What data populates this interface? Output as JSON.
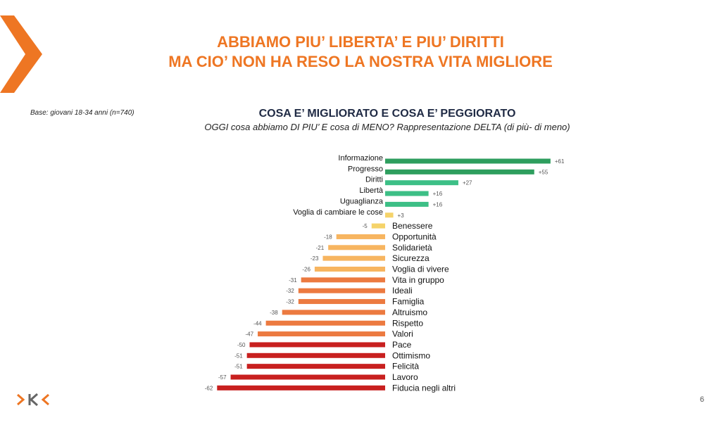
{
  "header": {
    "title_line1": "ABBIAMO PIU’ LIBERTA’ E PIU’ DIRITTI",
    "title_line2": "MA CIO’ NON HA RESO LA NOSTRA VITA MIGLIORE"
  },
  "base_note": "Base: giovani 18-34 anni (n=740)",
  "chart_title": "COSA E’ MIGLIORATO E COSA E’ PEGGIORATO",
  "chart_subtitle": "OGGI cosa abbiamo DI PIU’ E cosa di MENO? Rappresentazione DELTA (di più- di meno)",
  "page_number": "6",
  "colors": {
    "brand_orange": "#ee7623",
    "dark_green": "#2e9e5e",
    "light_green": "#3dbf86",
    "yellow": "#f5d36a",
    "light_orange": "#f7b560",
    "orange": "#ec7a40",
    "red": "#c8201f"
  },
  "chart_data": {
    "type": "bar",
    "orientation": "horizontal",
    "categories": [
      "Informazione",
      "Progresso",
      "Diritti",
      "Libertà",
      "Uguaglianza",
      "Voglia di cambiare le cose",
      "Benessere",
      "Opportunità",
      "Solidarietà",
      "Sicurezza",
      "Voglia di vivere",
      "Vita in gruppo",
      "Ideali",
      "Famiglia",
      "Altruismo",
      "Rispetto",
      "Valori",
      "Pace",
      "Ottimismo",
      "Felicità",
      "Lavoro",
      "Fiducia negli altri"
    ],
    "values": [
      61,
      55,
      27,
      16,
      16,
      3,
      -5,
      -18,
      -21,
      -23,
      -26,
      -31,
      -32,
      -32,
      -38,
      -44,
      -47,
      -50,
      -51,
      -51,
      -57,
      -62
    ],
    "value_labels": [
      "+61",
      "+55",
      "+27",
      "+16",
      "+16",
      "+3",
      "-5",
      "-18",
      "-21",
      "-23",
      "-26",
      "-31",
      "-32",
      "-32",
      "-38",
      "-44",
      "-47",
      "-50",
      "-51",
      "-51",
      "-57",
      "-62"
    ],
    "bar_colors": [
      "#2e9e5e",
      "#2e9e5e",
      "#3dbf86",
      "#3dbf86",
      "#3dbf86",
      "#f5d36a",
      "#f5d36a",
      "#f7b560",
      "#f7b560",
      "#f7b560",
      "#f7b560",
      "#ec7a40",
      "#ec7a40",
      "#ec7a40",
      "#ec7a40",
      "#ec7a40",
      "#ec7a40",
      "#c8201f",
      "#c8201f",
      "#c8201f",
      "#c8201f",
      "#c8201f"
    ],
    "xlim": [
      -62,
      61
    ],
    "grid": false,
    "legend": "none"
  }
}
